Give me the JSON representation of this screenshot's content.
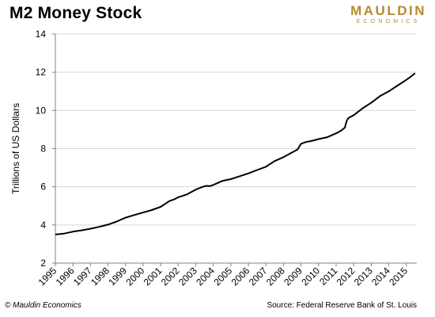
{
  "chart_data": {
    "type": "line",
    "title": "M2 Money Stock",
    "ylabel": "Trillions of US Dollars",
    "xlabel": "",
    "ylim": [
      2,
      14
    ],
    "yticks": [
      2,
      4,
      6,
      8,
      10,
      12,
      14
    ],
    "xticks": [
      1995,
      1996,
      1997,
      1998,
      1999,
      2000,
      2001,
      2002,
      2003,
      2004,
      2005,
      2006,
      2007,
      2008,
      2009,
      2010,
      2011,
      2012,
      2013,
      2014,
      2015
    ],
    "xlim": [
      1995,
      2015.6
    ],
    "grid": "horizontal",
    "series": [
      {
        "color": "#000000",
        "x": [
          1995.0,
          1995.5,
          1996.0,
          1996.5,
          1997.0,
          1997.5,
          1998.0,
          1998.5,
          1999.0,
          1999.5,
          2000.0,
          2000.5,
          2001.0,
          2001.5,
          2001.8,
          2002.0,
          2002.5,
          2003.0,
          2003.4,
          2003.6,
          2003.8,
          2004.0,
          2004.5,
          2005.0,
          2005.5,
          2006.0,
          2006.5,
          2007.0,
          2007.5,
          2008.0,
          2008.5,
          2008.8,
          2009.0,
          2009.3,
          2009.6,
          2010.0,
          2010.5,
          2011.0,
          2011.3,
          2011.5,
          2011.6,
          2011.7,
          2012.0,
          2012.5,
          2013.0,
          2013.5,
          2014.0,
          2014.5,
          2015.0,
          2015.3,
          2015.5
        ],
        "y": [
          3.5,
          3.55,
          3.65,
          3.72,
          3.8,
          3.9,
          4.02,
          4.18,
          4.38,
          4.52,
          4.65,
          4.78,
          4.95,
          5.25,
          5.35,
          5.45,
          5.6,
          5.85,
          6.0,
          6.05,
          6.03,
          6.1,
          6.3,
          6.4,
          6.55,
          6.7,
          6.88,
          7.05,
          7.35,
          7.55,
          7.8,
          7.95,
          8.25,
          8.35,
          8.4,
          8.5,
          8.6,
          8.8,
          8.95,
          9.1,
          9.45,
          9.6,
          9.75,
          10.1,
          10.4,
          10.75,
          11.0,
          11.3,
          11.6,
          11.8,
          11.95
        ]
      }
    ]
  },
  "logo": {
    "main": "MAULDIN",
    "sub": "ECONOMICS"
  },
  "footer": {
    "copyright": "© Mauldin Economics",
    "source": "Source: Federal Reserve Bank of St. Louis"
  }
}
